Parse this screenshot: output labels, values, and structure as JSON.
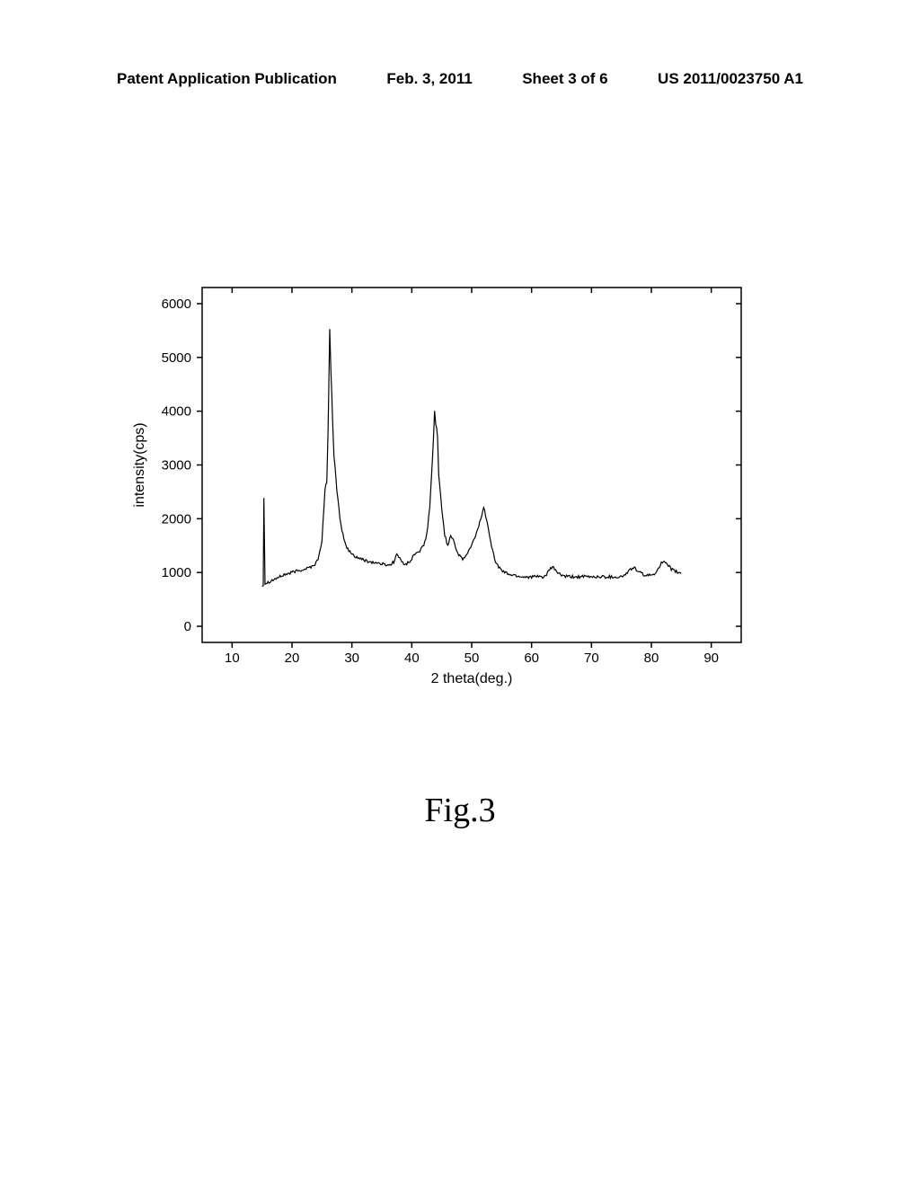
{
  "header": {
    "left": "Patent Application Publication",
    "center_date": "Feb. 3, 2011",
    "center_sheet": "Sheet 3 of 6",
    "right": "US 2011/0023750 A1"
  },
  "figure_label": "Fig.3",
  "chart": {
    "type": "line",
    "xlabel": "2 theta(deg.)",
    "ylabel": "intensity(cps)",
    "xlim": [
      5,
      95
    ],
    "ylim": [
      -300,
      6300
    ],
    "xticks": [
      10,
      20,
      30,
      40,
      50,
      60,
      70,
      80,
      90
    ],
    "yticks": [
      0,
      1000,
      2000,
      3000,
      4000,
      5000,
      6000
    ],
    "label_fontsize": 16,
    "tick_fontsize": 15,
    "line_color": "#000000",
    "line_width": 1.2,
    "background_color": "#ffffff",
    "data_points": [
      [
        15,
        750
      ],
      [
        15.2,
        780
      ],
      [
        15.3,
        2400
      ],
      [
        15.5,
        800
      ],
      [
        16,
        820
      ],
      [
        16.5,
        850
      ],
      [
        17,
        870
      ],
      [
        17.5,
        900
      ],
      [
        18,
        920
      ],
      [
        18.5,
        950
      ],
      [
        19,
        970
      ],
      [
        19.5,
        980
      ],
      [
        20,
        1000
      ],
      [
        20.5,
        1020
      ],
      [
        21,
        1030
      ],
      [
        21.5,
        1050
      ],
      [
        22,
        1060
      ],
      [
        22.5,
        1080
      ],
      [
        23,
        1100
      ],
      [
        23.5,
        1120
      ],
      [
        24,
        1180
      ],
      [
        24.5,
        1300
      ],
      [
        25,
        1600
      ],
      [
        25.5,
        2500
      ],
      [
        25.8,
        2700
      ],
      [
        26,
        3500
      ],
      [
        26.3,
        5500
      ],
      [
        26.5,
        4800
      ],
      [
        26.8,
        3800
      ],
      [
        27,
        3200
      ],
      [
        27.5,
        2500
      ],
      [
        28,
        2000
      ],
      [
        28.5,
        1700
      ],
      [
        29,
        1500
      ],
      [
        29.5,
        1400
      ],
      [
        30,
        1350
      ],
      [
        30.5,
        1300
      ],
      [
        31,
        1280
      ],
      [
        31.5,
        1250
      ],
      [
        32,
        1230
      ],
      [
        32.5,
        1220
      ],
      [
        33,
        1200
      ],
      [
        33.5,
        1190
      ],
      [
        34,
        1180
      ],
      [
        34.5,
        1170
      ],
      [
        35,
        1160
      ],
      [
        35.5,
        1150
      ],
      [
        36,
        1140
      ],
      [
        36.5,
        1150
      ],
      [
        37,
        1200
      ],
      [
        37.5,
        1350
      ],
      [
        38,
        1250
      ],
      [
        38.5,
        1180
      ],
      [
        39,
        1160
      ],
      [
        39.5,
        1180
      ],
      [
        40,
        1250
      ],
      [
        40.5,
        1350
      ],
      [
        41,
        1380
      ],
      [
        41.5,
        1420
      ],
      [
        42,
        1500
      ],
      [
        42.5,
        1700
      ],
      [
        43,
        2200
      ],
      [
        43.5,
        3200
      ],
      [
        43.8,
        4000
      ],
      [
        44,
        3800
      ],
      [
        44.3,
        3500
      ],
      [
        44.5,
        2800
      ],
      [
        45,
        2200
      ],
      [
        45.5,
        1700
      ],
      [
        46,
        1500
      ],
      [
        46.5,
        1700
      ],
      [
        47,
        1600
      ],
      [
        47.5,
        1400
      ],
      [
        48,
        1300
      ],
      [
        48.5,
        1250
      ],
      [
        49,
        1300
      ],
      [
        49.5,
        1400
      ],
      [
        50,
        1500
      ],
      [
        50.5,
        1650
      ],
      [
        51,
        1800
      ],
      [
        51.5,
        2000
      ],
      [
        52,
        2200
      ],
      [
        52.5,
        2000
      ],
      [
        53,
        1700
      ],
      [
        53.5,
        1400
      ],
      [
        54,
        1200
      ],
      [
        54.5,
        1100
      ],
      [
        55,
        1050
      ],
      [
        55.5,
        1000
      ],
      [
        56,
        980
      ],
      [
        56.5,
        960
      ],
      [
        57,
        950
      ],
      [
        57.5,
        940
      ],
      [
        58,
        930
      ],
      [
        58.5,
        920
      ],
      [
        59,
        920
      ],
      [
        59.5,
        920
      ],
      [
        60,
        920
      ],
      [
        60.5,
        920
      ],
      [
        61,
        920
      ],
      [
        61.5,
        920
      ],
      [
        62,
        920
      ],
      [
        62.5,
        950
      ],
      [
        63,
        1050
      ],
      [
        63.5,
        1100
      ],
      [
        64,
        1050
      ],
      [
        64.5,
        980
      ],
      [
        65,
        950
      ],
      [
        65.5,
        930
      ],
      [
        66,
        920
      ],
      [
        66.5,
        920
      ],
      [
        67,
        920
      ],
      [
        67.5,
        920
      ],
      [
        68,
        920
      ],
      [
        68.5,
        920
      ],
      [
        69,
        920
      ],
      [
        69.5,
        920
      ],
      [
        70,
        920
      ],
      [
        70.5,
        920
      ],
      [
        71,
        920
      ],
      [
        71.5,
        920
      ],
      [
        72,
        920
      ],
      [
        72.5,
        920
      ],
      [
        73,
        920
      ],
      [
        73.5,
        920
      ],
      [
        74,
        920
      ],
      [
        74.5,
        920
      ],
      [
        75,
        920
      ],
      [
        75.5,
        950
      ],
      [
        76,
        1000
      ],
      [
        76.5,
        1050
      ],
      [
        77,
        1100
      ],
      [
        77.5,
        1050
      ],
      [
        78,
        1000
      ],
      [
        78.5,
        970
      ],
      [
        79,
        950
      ],
      [
        79.5,
        940
      ],
      [
        80,
        950
      ],
      [
        80.5,
        980
      ],
      [
        81,
        1050
      ],
      [
        81.5,
        1150
      ],
      [
        82,
        1200
      ],
      [
        82.5,
        1150
      ],
      [
        83,
        1100
      ],
      [
        83.5,
        1050
      ],
      [
        84,
        1020
      ],
      [
        84.5,
        1000
      ],
      [
        85,
        980
      ]
    ],
    "noise_amplitude": 60
  }
}
